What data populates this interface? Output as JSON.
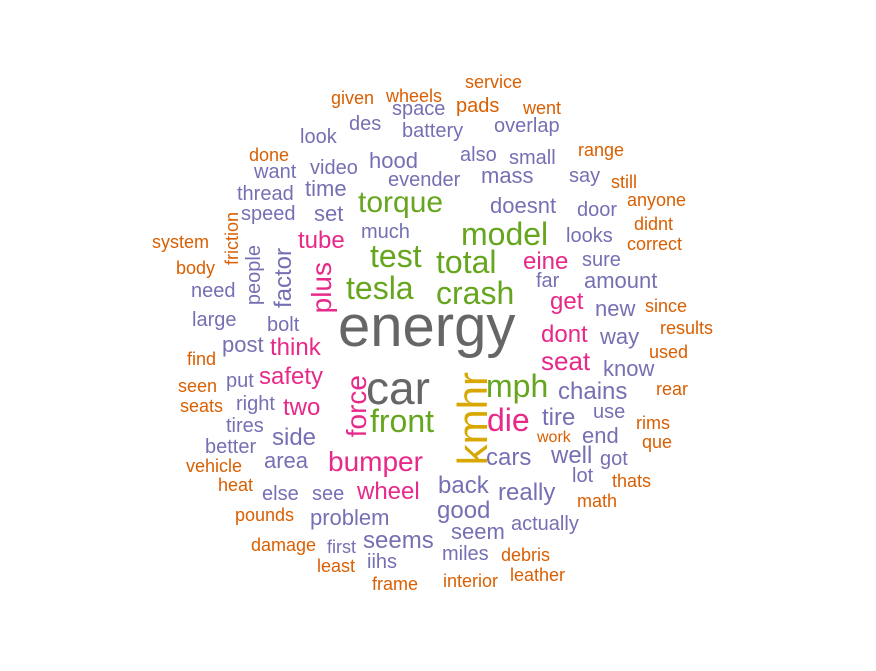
{
  "palette": {
    "dark": "#666666",
    "mustard": "#d8a700",
    "green": "#66a61e",
    "magenta": "#e7298a",
    "purple": "#7570b3",
    "orange": "#d95f02"
  },
  "words": [
    {
      "text": "energy",
      "color": "dark"
    },
    {
      "text": "car",
      "color": "dark"
    },
    {
      "text": "kmhr",
      "color": "mustard"
    },
    {
      "text": "front",
      "color": "green"
    },
    {
      "text": "tesla",
      "color": "green"
    },
    {
      "text": "crash",
      "color": "green"
    },
    {
      "text": "total",
      "color": "green"
    },
    {
      "text": "test",
      "color": "green"
    },
    {
      "text": "model",
      "color": "green"
    },
    {
      "text": "torque",
      "color": "green"
    },
    {
      "text": "mph",
      "color": "green"
    },
    {
      "text": "die",
      "color": "magenta"
    },
    {
      "text": "bumper",
      "color": "magenta"
    },
    {
      "text": "force",
      "color": "magenta"
    },
    {
      "text": "plus",
      "color": "magenta"
    },
    {
      "text": "tube",
      "color": "magenta"
    },
    {
      "text": "think",
      "color": "magenta"
    },
    {
      "text": "safety",
      "color": "magenta"
    },
    {
      "text": "seat",
      "color": "magenta"
    },
    {
      "text": "dont",
      "color": "magenta"
    },
    {
      "text": "get",
      "color": "magenta"
    },
    {
      "text": "eine",
      "color": "magenta"
    },
    {
      "text": "wheel",
      "color": "magenta"
    },
    {
      "text": "two",
      "color": "magenta"
    },
    {
      "text": "factor",
      "color": "purple"
    },
    {
      "text": "doesnt",
      "color": "purple"
    },
    {
      "text": "hood",
      "color": "purple"
    },
    {
      "text": "mass",
      "color": "purple"
    },
    {
      "text": "evender",
      "color": "purple"
    },
    {
      "text": "also",
      "color": "purple"
    },
    {
      "text": "small",
      "color": "purple"
    },
    {
      "text": "time",
      "color": "purple"
    },
    {
      "text": "set",
      "color": "purple"
    },
    {
      "text": "speed",
      "color": "purple"
    },
    {
      "text": "much",
      "color": "purple"
    },
    {
      "text": "video",
      "color": "purple"
    },
    {
      "text": "thread",
      "color": "purple"
    },
    {
      "text": "look",
      "color": "purple"
    },
    {
      "text": "des",
      "color": "purple"
    },
    {
      "text": "battery",
      "color": "purple"
    },
    {
      "text": "space",
      "color": "purple"
    },
    {
      "text": "overlap",
      "color": "purple"
    },
    {
      "text": "say",
      "color": "purple"
    },
    {
      "text": "door",
      "color": "purple"
    },
    {
      "text": "looks",
      "color": "purple"
    },
    {
      "text": "sure",
      "color": "purple"
    },
    {
      "text": "amount",
      "color": "purple"
    },
    {
      "text": "far",
      "color": "purple"
    },
    {
      "text": "new",
      "color": "purple"
    },
    {
      "text": "way",
      "color": "purple"
    },
    {
      "text": "know",
      "color": "purple"
    },
    {
      "text": "chains",
      "color": "purple"
    },
    {
      "text": "tire",
      "color": "purple"
    },
    {
      "text": "use",
      "color": "purple"
    },
    {
      "text": "end",
      "color": "purple"
    },
    {
      "text": "well",
      "color": "purple"
    },
    {
      "text": "got",
      "color": "purple"
    },
    {
      "text": "lot",
      "color": "purple"
    },
    {
      "text": "cars",
      "color": "purple"
    },
    {
      "text": "back",
      "color": "purple"
    },
    {
      "text": "really",
      "color": "purple"
    },
    {
      "text": "good",
      "color": "purple"
    },
    {
      "text": "actually",
      "color": "purple"
    },
    {
      "text": "seem",
      "color": "purple"
    },
    {
      "text": "miles",
      "color": "purple"
    },
    {
      "text": "seems",
      "color": "purple"
    },
    {
      "text": "problem",
      "color": "purple"
    },
    {
      "text": "see",
      "color": "purple"
    },
    {
      "text": "else",
      "color": "purple"
    },
    {
      "text": "area",
      "color": "purple"
    },
    {
      "text": "side",
      "color": "purple"
    },
    {
      "text": "post",
      "color": "purple"
    },
    {
      "text": "put",
      "color": "purple"
    },
    {
      "text": "right",
      "color": "purple"
    },
    {
      "text": "tires",
      "color": "purple"
    },
    {
      "text": "better",
      "color": "purple"
    },
    {
      "text": "bolt",
      "color": "purple"
    },
    {
      "text": "people",
      "color": "purple"
    },
    {
      "text": "need",
      "color": "purple"
    },
    {
      "text": "large",
      "color": "purple"
    },
    {
      "text": "want",
      "color": "purple"
    },
    {
      "text": "first",
      "color": "purple"
    },
    {
      "text": "iihs",
      "color": "purple"
    },
    {
      "text": "service",
      "color": "orange"
    },
    {
      "text": "given",
      "color": "orange"
    },
    {
      "text": "wheels",
      "color": "orange"
    },
    {
      "text": "pads",
      "color": "orange"
    },
    {
      "text": "went",
      "color": "orange"
    },
    {
      "text": "done",
      "color": "orange"
    },
    {
      "text": "range",
      "color": "orange"
    },
    {
      "text": "still",
      "color": "orange"
    },
    {
      "text": "anyone",
      "color": "orange"
    },
    {
      "text": "didnt",
      "color": "orange"
    },
    {
      "text": "correct",
      "color": "orange"
    },
    {
      "text": "system",
      "color": "orange"
    },
    {
      "text": "friction",
      "color": "orange"
    },
    {
      "text": "body",
      "color": "orange"
    },
    {
      "text": "since",
      "color": "orange"
    },
    {
      "text": "results",
      "color": "orange"
    },
    {
      "text": "used",
      "color": "orange"
    },
    {
      "text": "find",
      "color": "orange"
    },
    {
      "text": "seen",
      "color": "orange"
    },
    {
      "text": "rear",
      "color": "orange"
    },
    {
      "text": "seats",
      "color": "orange"
    },
    {
      "text": "rims",
      "color": "orange"
    },
    {
      "text": "que",
      "color": "orange"
    },
    {
      "text": "work",
      "color": "orange"
    },
    {
      "text": "vehicle",
      "color": "orange"
    },
    {
      "text": "heat",
      "color": "orange"
    },
    {
      "text": "thats",
      "color": "orange"
    },
    {
      "text": "math",
      "color": "orange"
    },
    {
      "text": "pounds",
      "color": "orange"
    },
    {
      "text": "damage",
      "color": "orange"
    },
    {
      "text": "debris",
      "color": "orange"
    },
    {
      "text": "least",
      "color": "orange"
    },
    {
      "text": "leather",
      "color": "orange"
    },
    {
      "text": "frame",
      "color": "orange"
    },
    {
      "text": "interior",
      "color": "orange"
    }
  ]
}
